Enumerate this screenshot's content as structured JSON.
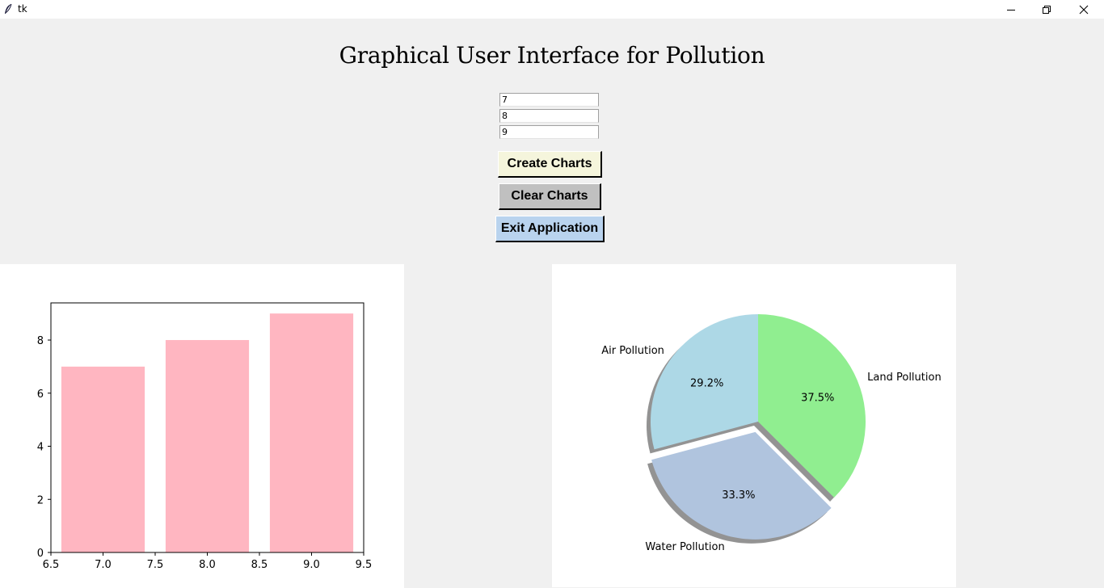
{
  "window": {
    "title": "tk",
    "icon": "feather-icon",
    "controls": [
      "minimize-icon",
      "maximize-icon",
      "close-icon"
    ]
  },
  "header": {
    "title": "Graphical User Interface for Pollution"
  },
  "inputs": [
    {
      "value": "7"
    },
    {
      "value": "8"
    },
    {
      "value": "9"
    }
  ],
  "buttons": {
    "create": "Create Charts",
    "clear": "Clear Charts",
    "exit": "Exit Application"
  },
  "colors": {
    "bar": "#ffb6c1",
    "create_button": "#f5f5dc",
    "clear_button": "#c0c0c0",
    "exit_button": "#b9d3ee",
    "pie_air": "#add8e6",
    "pie_water": "#b0c4de",
    "pie_land": "#90ee90"
  },
  "chart_data": [
    {
      "type": "bar",
      "x": [
        7,
        8,
        9
      ],
      "values": [
        7,
        8,
        9
      ],
      "xlim": [
        6.5,
        9.5
      ],
      "ylim": [
        0,
        9.4
      ],
      "xticks": [
        "6.5",
        "7.0",
        "7.5",
        "8.0",
        "8.5",
        "9.0",
        "9.5"
      ],
      "yticks": [
        "0",
        "2",
        "4",
        "6",
        "8"
      ],
      "title": "",
      "xlabel": "",
      "ylabel": "",
      "grid": false
    },
    {
      "type": "pie",
      "labels": [
        "Air Pollution",
        "Water Pollution",
        "Land Pollution"
      ],
      "values": [
        7,
        8,
        9
      ],
      "percent_labels": [
        "29.2%",
        "33.3%",
        "37.5%"
      ],
      "exploded": "Water Pollution",
      "shadow": true,
      "start_angle": 90
    }
  ]
}
